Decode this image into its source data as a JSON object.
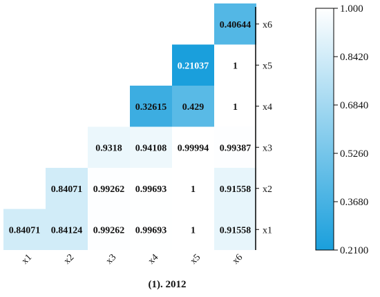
{
  "chart_data": {
    "type": "heatmap",
    "title": "(1). 2012",
    "x_labels": [
      "x1",
      "x2",
      "x3",
      "x4",
      "x5",
      "x6"
    ],
    "y_labels": [
      "x1",
      "x2",
      "x3",
      "x4",
      "x5",
      "x6"
    ],
    "cells": [
      {
        "x": "x1",
        "y": "x1",
        "value": 0.84071,
        "label": "0.84071"
      },
      {
        "x": "x2",
        "y": "x1",
        "value": 0.84124,
        "label": "0.84124"
      },
      {
        "x": "x3",
        "y": "x1",
        "value": 0.99262,
        "label": "0.99262"
      },
      {
        "x": "x4",
        "y": "x1",
        "value": 0.99693,
        "label": "0.99693"
      },
      {
        "x": "x5",
        "y": "x1",
        "value": 1,
        "label": "1"
      },
      {
        "x": "x6",
        "y": "x1",
        "value": 0.91558,
        "label": "0.91558"
      },
      {
        "x": "x2",
        "y": "x2",
        "value": 0.84071,
        "label": "0.84071"
      },
      {
        "x": "x3",
        "y": "x2",
        "value": 0.99262,
        "label": "0.99262"
      },
      {
        "x": "x4",
        "y": "x2",
        "value": 0.99693,
        "label": "0.99693"
      },
      {
        "x": "x5",
        "y": "x2",
        "value": 1,
        "label": "1"
      },
      {
        "x": "x6",
        "y": "x2",
        "value": 0.91558,
        "label": "0.91558"
      },
      {
        "x": "x3",
        "y": "x3",
        "value": 0.9318,
        "label": "0.9318"
      },
      {
        "x": "x4",
        "y": "x3",
        "value": 0.94108,
        "label": "0.94108"
      },
      {
        "x": "x5",
        "y": "x3",
        "value": 0.99994,
        "label": "0.99994"
      },
      {
        "x": "x6",
        "y": "x3",
        "value": 0.99387,
        "label": "0.99387"
      },
      {
        "x": "x4",
        "y": "x4",
        "value": 0.32615,
        "label": "0.32615"
      },
      {
        "x": "x5",
        "y": "x4",
        "value": 0.429,
        "label": "0.429"
      },
      {
        "x": "x6",
        "y": "x4",
        "value": 1,
        "label": "1"
      },
      {
        "x": "x5",
        "y": "x5",
        "value": 0.21037,
        "label": "0.21037"
      },
      {
        "x": "x6",
        "y": "x5",
        "value": 1,
        "label": "1"
      },
      {
        "x": "x6",
        "y": "x6",
        "value": 0.40644,
        "label": "0.40644"
      }
    ],
    "colorbar": {
      "min": 0.21,
      "max": 1.0,
      "ticks": [
        "1.000",
        "0.8420",
        "0.6840",
        "0.5260",
        "0.3680",
        "0.2100"
      ],
      "placement": "right",
      "low_color": "#1a9fdc",
      "high_color": "#ffffff"
    }
  }
}
